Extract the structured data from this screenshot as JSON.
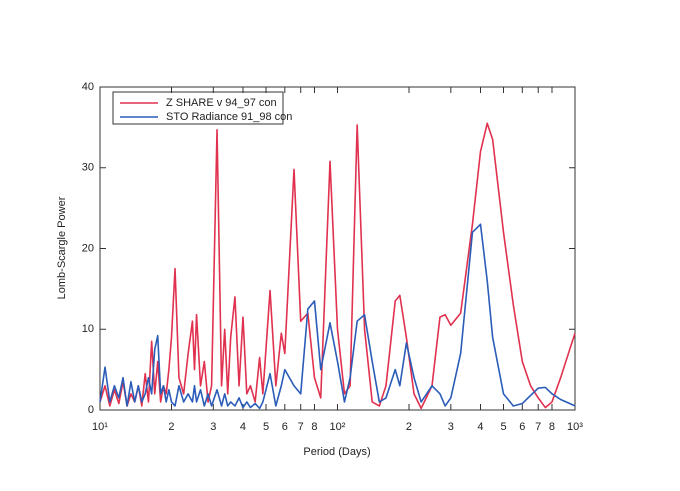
{
  "chart_data": {
    "type": "line",
    "x_label": "Period (Days)",
    "y_label": "Lomb-Scargle Power",
    "xscale": "log",
    "xlim": [
      10,
      1000
    ],
    "ylim": [
      0,
      40
    ],
    "yticks": [
      0,
      10,
      20,
      30,
      40
    ],
    "xticks": [
      {
        "value": 10,
        "label": "10¹"
      },
      {
        "value": 20,
        "label": "2"
      },
      {
        "value": 30,
        "label": "3"
      },
      {
        "value": 40,
        "label": "4"
      },
      {
        "value": 50,
        "label": "5"
      },
      {
        "value": 60,
        "label": "6"
      },
      {
        "value": 70,
        "label": "7"
      },
      {
        "value": 80,
        "label": "8"
      },
      {
        "value": 100,
        "label": "10²"
      },
      {
        "value": 200,
        "label": "2"
      },
      {
        "value": 300,
        "label": "3"
      },
      {
        "value": 400,
        "label": "4"
      },
      {
        "value": 500,
        "label": "5"
      },
      {
        "value": 600,
        "label": "6"
      },
      {
        "value": 700,
        "label": "7"
      },
      {
        "value": 800,
        "label": "8"
      },
      {
        "value": 1000,
        "label": "10³"
      }
    ],
    "legend": "upper left",
    "x": [
      10,
      10.5,
      11,
      11.5,
      12,
      12.5,
      13,
      13.5,
      14,
      14.5,
      15,
      15.5,
      16,
      16.5,
      17,
      17.5,
      18,
      18.5,
      19,
      19.5,
      20,
      20.7,
      21.5,
      22.5,
      23.5,
      24.5,
      25,
      25.5,
      26.5,
      27.5,
      28.5,
      29.5,
      31.1,
      32.5,
      33.5,
      34.5,
      35.5,
      37,
      38.5,
      40,
      41.5,
      43,
      45,
      47,
      48.5,
      52,
      55,
      58,
      60,
      65.6,
      70,
      75,
      80,
      85,
      93,
      100,
      107,
      113,
      121,
      130,
      140,
      150,
      160,
      175,
      183,
      195,
      210,
      225,
      250,
      270,
      284,
      300,
      330,
      370,
      400,
      427,
      450,
      500,
      550,
      600,
      650,
      700,
      750,
      800,
      870,
      950,
      1000
    ],
    "series": [
      {
        "name": "Z SHARE v 94_97 con",
        "color": "#e0314f",
        "values": [
          1,
          3,
          0.5,
          2.5,
          0.8,
          3.5,
          0.5,
          2,
          1,
          3,
          0.5,
          4.5,
          1,
          8.5,
          2,
          6,
          1,
          3,
          2,
          5,
          9,
          17.5,
          4,
          2,
          7,
          11,
          5,
          11.8,
          3,
          6,
          1,
          3,
          34.7,
          3,
          10,
          2,
          9,
          14,
          3,
          11.5,
          2,
          3,
          1,
          6.5,
          2,
          14.8,
          3,
          9.5,
          7,
          29.8,
          11,
          12,
          4,
          1.5,
          30.8,
          10,
          2,
          3,
          35.3,
          10,
          1,
          0.5,
          3,
          13.5,
          14.2,
          9,
          2,
          0.2,
          3,
          11.5,
          11.8,
          10.5,
          12,
          23,
          32,
          35.5,
          33.5,
          22,
          13,
          6,
          3,
          1.5,
          0.3,
          1,
          4,
          7.5,
          9.5
        ]
      },
      {
        "name": "STO Radiance 91_98 con",
        "color": "#2b5cb8",
        "values": [
          1,
          5.3,
          1,
          3,
          1.5,
          4,
          0.5,
          3.5,
          1,
          3,
          1,
          2,
          4,
          2,
          7.5,
          9.2,
          2,
          3,
          1,
          2.5,
          1,
          0.5,
          3,
          1,
          2,
          1,
          3,
          1,
          2.5,
          0.5,
          2,
          0.5,
          2.5,
          0.5,
          2,
          0.5,
          1,
          0.5,
          1.5,
          0.3,
          1,
          0.3,
          0.8,
          0.2,
          1,
          4.5,
          0.5,
          3,
          5,
          3,
          2,
          12.5,
          13.5,
          5,
          10.8,
          6,
          1,
          4,
          11,
          11.8,
          6,
          1,
          1.5,
          5,
          3,
          8.3,
          4,
          1,
          3,
          2,
          0.5,
          1.5,
          7,
          22,
          23,
          16,
          9,
          2,
          0.5,
          0.8,
          1.8,
          2.7,
          2.8,
          2,
          1.3,
          0.8,
          0.5
        ]
      }
    ]
  }
}
